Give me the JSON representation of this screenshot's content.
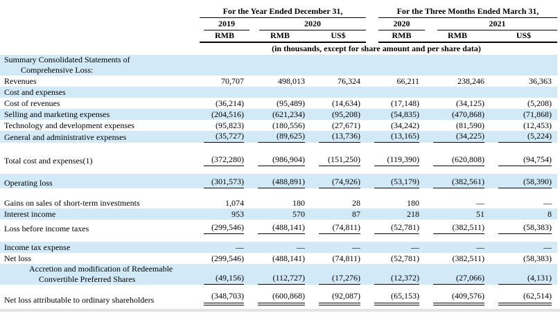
{
  "table": {
    "header": {
      "group_year": "For the Year Ended December 31,",
      "group_quarter": "For the Three Months Ended March 31,",
      "periods": [
        "2019",
        "2020",
        "2020",
        "2021"
      ],
      "currencies": [
        "RMB",
        "RMB",
        "US$",
        "RMB",
        "RMB",
        "US$"
      ],
      "note": "(in thousands, except for share amount and per share data)"
    },
    "rows": [
      {
        "label": "Summary Consolidated Statements of",
        "label2": "Comprehensive Loss:"
      },
      {
        "label": "Revenues",
        "values": [
          "70,707",
          "498,013",
          "76,324",
          "66,211",
          "238,246",
          "36,363"
        ]
      },
      {
        "label": "Cost and expenses"
      },
      {
        "label": "Cost of revenues",
        "values": [
          "(36,214)",
          "(95,489)",
          "(14,634)",
          "(17,148)",
          "(34,125)",
          "(5,208)"
        ]
      },
      {
        "label": "Selling and marketing expenses",
        "values": [
          "(204,516)",
          "(621,234)",
          "(95,208)",
          "(54,835)",
          "(470,868)",
          "(71,868)"
        ]
      },
      {
        "label": "Technology and development expenses",
        "values": [
          "(95,823)",
          "(180,556)",
          "(27,671)",
          "(34,242)",
          "(81,590)",
          "(12,453)"
        ]
      },
      {
        "label": "General and administrative expenses",
        "values": [
          "(35,727)",
          "(89,625)",
          "(13,736)",
          "(13,165)",
          "(34,225)",
          "(5,224)"
        ]
      },
      {
        "label": "Total cost and expenses(1)",
        "values": [
          "(372,280)",
          "(986,904)",
          "(151,250)",
          "(119,390)",
          "(620,808)",
          "(94,754)"
        ]
      },
      {
        "label": "Operating loss",
        "values": [
          "(301,573)",
          "(488,891)",
          "(74,926)",
          "(53,179)",
          "(382,561)",
          "(58,390)"
        ]
      },
      {
        "label": "Gains on sales of short-term investments",
        "values": [
          "1,074",
          "180",
          "28",
          "180",
          "—",
          "—"
        ]
      },
      {
        "label": "Interest income",
        "values": [
          "953",
          "570",
          "87",
          "218",
          "51",
          "8"
        ]
      },
      {
        "label": "Loss before income taxes",
        "values": [
          "(299,546)",
          "(488,141)",
          "(74,811)",
          "(52,781)",
          "(382,511)",
          "(58,383)"
        ]
      },
      {
        "label": "Income tax expense",
        "values": [
          "—",
          "—",
          "—",
          "—",
          "—",
          "—"
        ]
      },
      {
        "label": "Net loss",
        "values": [
          "(299,546)",
          "(488,141)",
          "(74,811)",
          "(52,781)",
          "(382,511)",
          "(58,383)"
        ]
      },
      {
        "label": "Accretion and modification of Redeemable",
        "label2": "Convertible Preferred Shares",
        "values": [
          "(49,156)",
          "(112,727)",
          "(17,276)",
          "(12,372)",
          "(27,066)",
          "(4,131)"
        ]
      },
      {
        "label": "Net loss attributable to ordinary shareholders",
        "values": [
          "(348,703)",
          "(600,868)",
          "(92,087)",
          "(65,153)",
          "(409,576)",
          "(62,514)"
        ]
      }
    ]
  }
}
